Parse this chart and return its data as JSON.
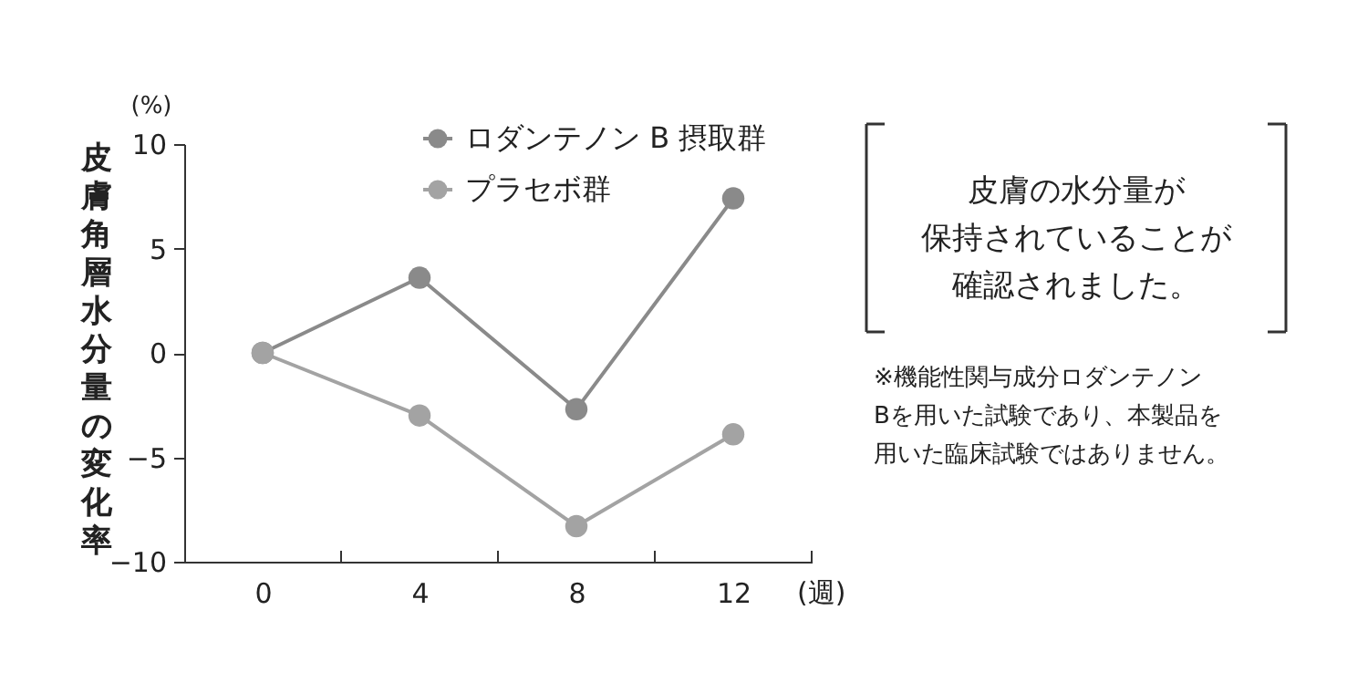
{
  "chart_data": {
    "type": "line",
    "ylabel": "皮膚角層水分量の変化率",
    "xlabel": "(週)",
    "x": [
      0,
      4,
      8,
      12
    ],
    "series": [
      {
        "name": "ロダンテノン B 摂取群",
        "color": "#8a8a8a",
        "values": [
          0,
          3.6,
          -2.7,
          7.4
        ]
      },
      {
        "name": "プラセボ群",
        "color": "#a3a3a3",
        "values": [
          0,
          -3.0,
          -8.3,
          -3.9
        ]
      }
    ],
    "xlim": [
      -2,
      14
    ],
    "xticks": [
      0,
      {
        "value": 2,
        "label": null
      },
      4,
      {
        "value": 6,
        "label": null
      },
      8,
      {
        "value": 10,
        "label": null
      },
      12,
      {
        "value": 14,
        "label": null
      }
    ],
    "ylim": [
      -10,
      10
    ],
    "yticks": [
      -10,
      -5,
      0,
      5,
      10
    ],
    "marker": "circle",
    "line_style": "solid",
    "grid": false,
    "legend": "top right",
    "annotations": [
      "(%)",
      "皮膚の水分量が",
      "保持されていることが",
      "確認されました。",
      "※機能性関与成分ロダンテノン",
      "Bを用いた試験であり、本製品を",
      "用いた臨床試験ではありません。"
    ]
  }
}
